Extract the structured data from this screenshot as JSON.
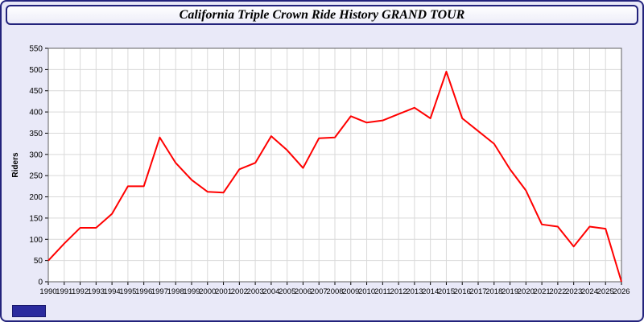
{
  "title": "California Triple Crown Ride History GRAND TOUR",
  "colors": {
    "page_background": "#e9e9f8",
    "frame_border": "#23237c",
    "plot_background": "#ffffff",
    "grid": "#d9d9d9",
    "line": "#ff0000",
    "axis_text": "#000000",
    "badge": "#2b2b9e"
  },
  "chart_data": {
    "type": "line",
    "title": "California Triple Crown Ride History GRAND TOUR",
    "xlabel": "",
    "ylabel": "Riders",
    "ylim": [
      0,
      550
    ],
    "ytick_step": 50,
    "grid": true,
    "legend": "none",
    "line_color": "#ff0000",
    "categories": [
      "1990",
      "1991",
      "1992",
      "1993",
      "1994",
      "1995",
      "1996",
      "1997",
      "1998",
      "1999",
      "2000",
      "2001",
      "2002",
      "2003",
      "2004",
      "2005",
      "2006",
      "2007",
      "2008",
      "2009",
      "2010",
      "2011",
      "2012",
      "2013",
      "2014",
      "2015",
      "2016",
      "2017",
      "2018",
      "2019",
      "2020",
      "2021",
      "2022",
      "2023",
      "2024",
      "2025",
      "2026"
    ],
    "values": [
      50,
      90,
      127,
      127,
      160,
      225,
      225,
      340,
      280,
      240,
      212,
      210,
      265,
      280,
      343,
      310,
      268,
      338,
      340,
      390,
      375,
      380,
      395,
      410,
      385,
      495,
      385,
      355,
      325,
      265,
      215,
      135,
      130,
      83,
      130,
      125,
      0
    ]
  }
}
